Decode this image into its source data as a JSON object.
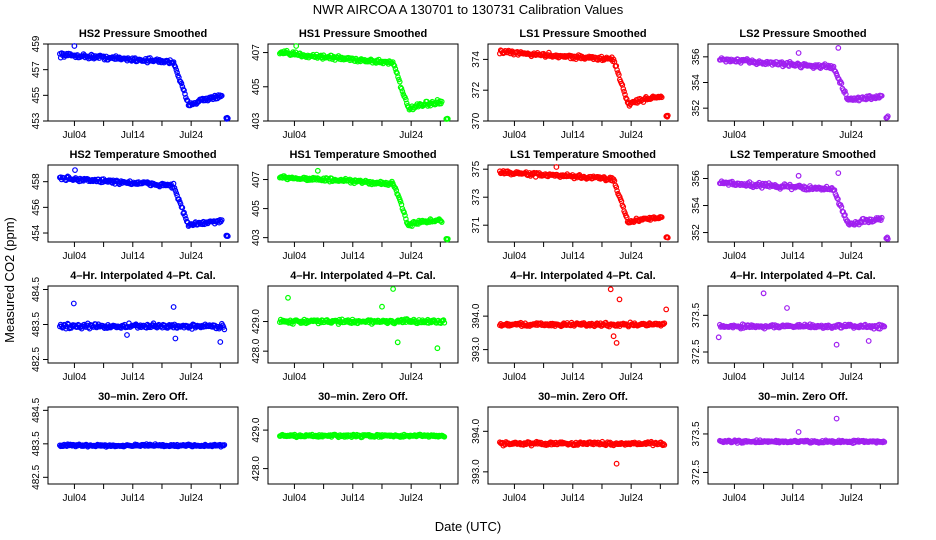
{
  "figure": {
    "title": "NWR   AIRCOA A   130701 to 130731   Calibration Values",
    "xlabel": "Date (UTC)",
    "ylabel": "Measured CO2 (ppm)"
  },
  "colors": {
    "HS2": "#0000ff",
    "HS1": "#00ff00",
    "LS1": "#ff0000",
    "LS2": "#a020f0"
  },
  "chart_data": [
    {
      "type": "scatter",
      "row": 0,
      "col": 0,
      "title": "HS2 Pressure Smoothed",
      "color": "#0000ff",
      "ylim": [
        453,
        459
      ],
      "yticks": [
        "453",
        "455",
        "457",
        "459"
      ],
      "xticks": [
        "Jul04",
        "Jul14",
        "Jul24"
      ],
      "shape": "drop",
      "level_start": 458.2,
      "level_mid": 457.6,
      "level_low": 454.3,
      "level_end": 454.9,
      "end_value": 453.2,
      "noise": 0.25,
      "outliers": [
        [
          3.5,
          459.0
        ]
      ]
    },
    {
      "type": "scatter",
      "row": 0,
      "col": 1,
      "title": "HS1 Pressure Smoothed",
      "color": "#00ff00",
      "ylim": [
        403,
        407.5
      ],
      "yticks": [
        "403",
        "405",
        "407"
      ],
      "xticks": [
        "Jul04",
        "Jul24"
      ],
      "shape": "drop",
      "level_start": 407.0,
      "level_mid": 406.4,
      "level_low": 403.7,
      "level_end": 404.1,
      "end_value": 403.1,
      "noise": 0.2,
      "outliers": [
        [
          3.8,
          407.7
        ]
      ]
    },
    {
      "type": "scatter",
      "row": 0,
      "col": 2,
      "title": "LS1 Pressure Smoothed",
      "color": "#ff0000",
      "ylim": [
        370,
        375
      ],
      "yticks": [
        "370",
        "372",
        "374"
      ],
      "xticks": [
        "Jul04",
        "Jul14",
        "Jul24"
      ],
      "shape": "drop",
      "level_start": 374.5,
      "level_mid": 374.0,
      "level_low": 371.1,
      "level_end": 371.6,
      "end_value": 370.3,
      "noise": 0.2,
      "outliers": []
    },
    {
      "type": "scatter",
      "row": 0,
      "col": 3,
      "title": "LS2 Pressure Smoothed",
      "color": "#a020f0",
      "ylim": [
        351,
        357
      ],
      "yticks": [
        "352",
        "354",
        "356"
      ],
      "xticks": [
        "Jul04",
        "Jul24"
      ],
      "shape": "drop",
      "level_start": 355.8,
      "level_mid": 355.2,
      "level_low": 352.6,
      "level_end": 352.9,
      "end_value": 351.3,
      "noise": 0.25,
      "outliers": [
        [
          14.5,
          356.3
        ],
        [
          21.3,
          356.7
        ]
      ]
    },
    {
      "type": "scatter",
      "row": 1,
      "col": 0,
      "title": "HS2 Temperature Smoothed",
      "color": "#0000ff",
      "ylim": [
        453.3,
        459.3
      ],
      "yticks": [
        "454",
        "456",
        "458"
      ],
      "xticks": [
        "Jul04",
        "Jul14",
        "Jul24"
      ],
      "shape": "drop",
      "level_start": 458.3,
      "level_mid": 457.7,
      "level_low": 454.6,
      "level_end": 454.9,
      "end_value": 453.7,
      "noise": 0.25,
      "outliers": [
        [
          3.6,
          458.9
        ]
      ]
    },
    {
      "type": "scatter",
      "row": 1,
      "col": 1,
      "title": "HS1 Temperature Smoothed",
      "color": "#00ff00",
      "ylim": [
        402.7,
        408
      ],
      "yticks": [
        "403",
        "405",
        "407"
      ],
      "xticks": [
        "Jul04",
        "Jul14",
        "Jul24"
      ],
      "shape": "drop",
      "level_start": 407.2,
      "level_mid": 406.7,
      "level_low": 403.9,
      "level_end": 404.2,
      "end_value": 402.9,
      "noise": 0.2,
      "outliers": [
        [
          7.5,
          407.6
        ]
      ]
    },
    {
      "type": "scatter",
      "row": 1,
      "col": 2,
      "title": "LS1 Temperature Smoothed",
      "color": "#ff0000",
      "ylim": [
        369.8,
        375.3
      ],
      "yticks": [
        "371",
        "373",
        "375"
      ],
      "xticks": [
        "Jul04",
        "Jul14",
        "Jul24"
      ],
      "shape": "drop",
      "level_start": 374.8,
      "level_mid": 374.3,
      "level_low": 371.2,
      "level_end": 371.6,
      "end_value": 370.1,
      "noise": 0.2,
      "outliers": [
        [
          10.7,
          375.2
        ]
      ]
    },
    {
      "type": "scatter",
      "row": 1,
      "col": 3,
      "title": "LS2 Temperature Smoothed",
      "color": "#a020f0",
      "ylim": [
        351.3,
        357
      ],
      "yticks": [
        "352",
        "354",
        "356"
      ],
      "xticks": [
        "Jul04",
        "Jul14",
        "Jul24"
      ],
      "shape": "drop",
      "level_start": 355.7,
      "level_mid": 355.2,
      "level_low": 352.6,
      "level_end": 353.0,
      "end_value": 351.6,
      "noise": 0.25,
      "outliers": [
        [
          14.5,
          356.2
        ],
        [
          21.3,
          356.4
        ]
      ]
    },
    {
      "type": "scatter",
      "row": 2,
      "col": 0,
      "title": "4–Hr. Interpolated 4–Pt. Cal.",
      "color": "#0000ff",
      "ylim": [
        482.4,
        484.6
      ],
      "yticks": [
        "482.5",
        "483.5",
        "484.5"
      ],
      "xticks": [
        "Jul04",
        "Jul14",
        "Jul24"
      ],
      "shape": "flat",
      "level": 483.45,
      "noise": 0.1,
      "outliers": [
        [
          3.4,
          484.1
        ],
        [
          20.5,
          484.0
        ],
        [
          20.8,
          483.1
        ],
        [
          28.5,
          483.0
        ],
        [
          12.5,
          483.2
        ]
      ]
    },
    {
      "type": "scatter",
      "row": 2,
      "col": 1,
      "title": "4–Hr. Interpolated 4–Pt. Cal.",
      "color": "#00ff00",
      "ylim": [
        427.6,
        430.2
      ],
      "yticks": [
        "428.0",
        "429.0"
      ],
      "xticks": [
        "Jul04",
        "Jul24"
      ],
      "shape": "flat",
      "level": 429.0,
      "noise": 0.1,
      "outliers": [
        [
          2.4,
          429.8
        ],
        [
          20.4,
          430.1
        ],
        [
          21.2,
          428.3
        ],
        [
          28.0,
          428.1
        ],
        [
          18.5,
          429.5
        ]
      ]
    },
    {
      "type": "scatter",
      "row": 2,
      "col": 2,
      "title": "4–Hr. Interpolated 4–Pt. Cal.",
      "color": "#ff0000",
      "ylim": [
        392.6,
        394.9
      ],
      "yticks": [
        "393.0",
        "394.0"
      ],
      "xticks": [
        "Jul04",
        "Jul14",
        "Jul24"
      ],
      "shape": "flat",
      "level": 393.75,
      "noise": 0.08,
      "outliers": [
        [
          20.0,
          394.8
        ],
        [
          21.0,
          393.2
        ],
        [
          21.5,
          394.5
        ],
        [
          29.5,
          394.2
        ],
        [
          20.5,
          393.4
        ]
      ]
    },
    {
      "type": "scatter",
      "row": 2,
      "col": 3,
      "title": "4–Hr. Interpolated 4–Pt. Cal.",
      "color": "#a020f0",
      "ylim": [
        372.2,
        374.3
      ],
      "yticks": [
        "372.5",
        "373.5"
      ],
      "xticks": [
        "Jul04",
        "Jul14",
        "Jul24"
      ],
      "shape": "flat",
      "level": 373.2,
      "noise": 0.08,
      "outliers": [
        [
          8.5,
          374.1
        ],
        [
          12.5,
          373.7
        ],
        [
          0.8,
          372.9
        ],
        [
          21.0,
          372.7
        ],
        [
          26.5,
          372.8
        ]
      ]
    },
    {
      "type": "scatter",
      "row": 3,
      "col": 0,
      "title": "30–min. Zero Off.",
      "color": "#0000ff",
      "ylim": [
        482.3,
        484.6
      ],
      "yticks": [
        "482.5",
        "483.5",
        "484.5"
      ],
      "xticks": [
        "Jul04",
        "Jul14",
        "Jul24"
      ],
      "shape": "flat",
      "level": 483.45,
      "noise": 0.05,
      "outliers": []
    },
    {
      "type": "scatter",
      "row": 3,
      "col": 1,
      "title": "30–min. Zero Off.",
      "color": "#00ff00",
      "ylim": [
        427.6,
        429.6
      ],
      "yticks": [
        "428.0",
        "429.0"
      ],
      "xticks": [
        "Jul04",
        "Jul14",
        "Jul24"
      ],
      "shape": "flat",
      "level": 428.85,
      "noise": 0.05,
      "outliers": []
    },
    {
      "type": "scatter",
      "row": 3,
      "col": 2,
      "title": "30–min. Zero Off.",
      "color": "#ff0000",
      "ylim": [
        392.7,
        394.6
      ],
      "yticks": [
        "393.0",
        "394.0"
      ],
      "xticks": [
        "Jul04",
        "Jul14",
        "Jul24"
      ],
      "shape": "flat",
      "level": 393.7,
      "noise": 0.06,
      "outliers": [
        [
          21.0,
          393.2
        ]
      ]
    },
    {
      "type": "scatter",
      "row": 3,
      "col": 3,
      "title": "30–min. Zero Off.",
      "color": "#a020f0",
      "ylim": [
        372.2,
        374.2
      ],
      "yticks": [
        "372.5",
        "373.5"
      ],
      "xticks": [
        "Jul04",
        "Jul14",
        "Jul24"
      ],
      "shape": "flat",
      "level": 373.3,
      "noise": 0.05,
      "outliers": [
        [
          21.0,
          373.9
        ],
        [
          14.5,
          373.55
        ]
      ]
    }
  ]
}
